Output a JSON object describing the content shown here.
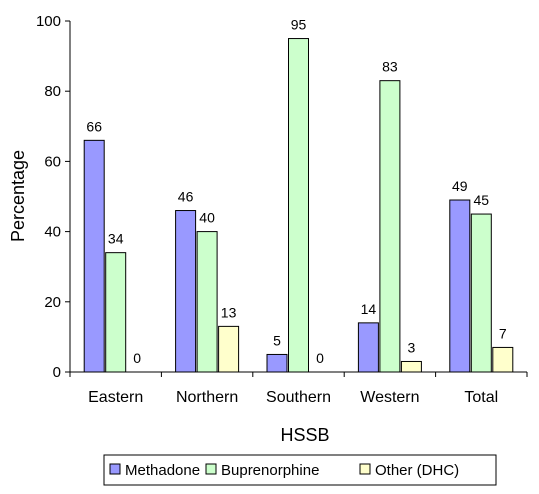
{
  "chart_data": {
    "type": "bar",
    "title": "",
    "xlabel": "HSSB",
    "ylabel": "Percentage",
    "ylim": [
      0,
      100
    ],
    "yticks": [
      0,
      20,
      40,
      60,
      80,
      100
    ],
    "grid": false,
    "legend_position": "bottom",
    "categories": [
      "Eastern",
      "Northern",
      "Southern",
      "Western",
      "Total"
    ],
    "series": [
      {
        "name": "Methadone",
        "color": "#9999ff",
        "values": [
          66,
          46,
          5,
          14,
          49
        ]
      },
      {
        "name": "Buprenorphine",
        "color": "#ccffcc",
        "values": [
          34,
          40,
          95,
          83,
          45
        ]
      },
      {
        "name": "Other (DHC)",
        "color": "#ffffcc",
        "values": [
          0,
          13,
          0,
          3,
          7
        ]
      }
    ]
  }
}
